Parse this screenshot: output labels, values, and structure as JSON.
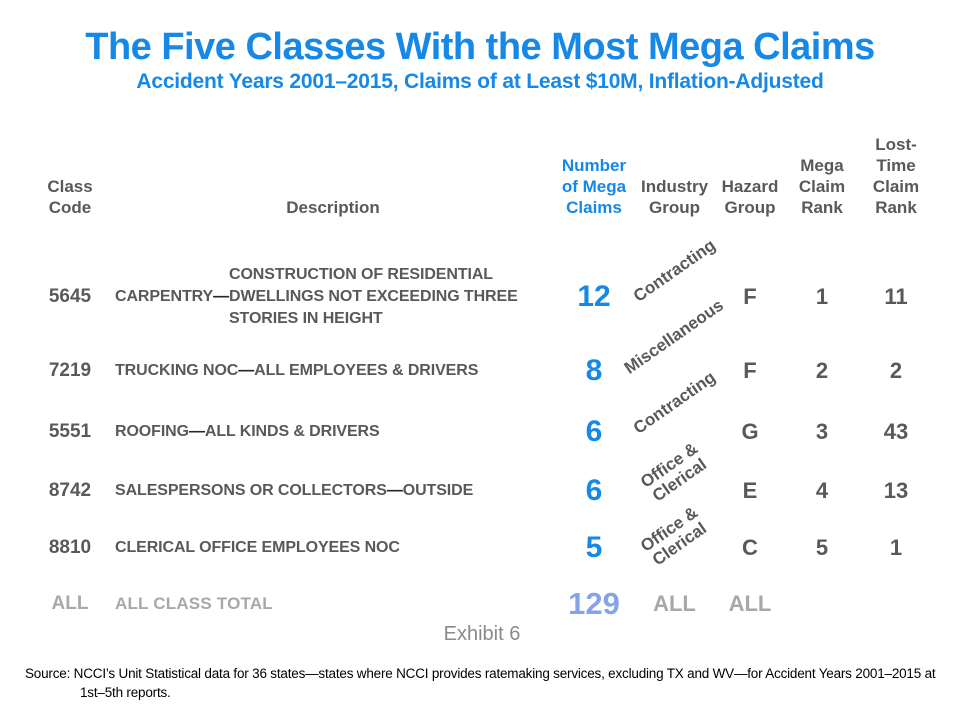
{
  "title": "The Five Classes With the Most Mega Claims",
  "subtitle": "Accident Years 2001–2015, Claims of at Least $10M, Inflation-Adjusted",
  "colors": {
    "accent_blue": "#1588E8",
    "total_muted_blue": "#86A2E8",
    "text_dark_gray": "#595959",
    "total_light_gray": "#A8A8A8",
    "exhibit_gray": "#8A8A8A",
    "background": "#FFFFFF"
  },
  "table": {
    "headers": {
      "class_code": "Class\nCode",
      "description": "Description",
      "mega_claims": "Number\nof Mega\nClaims",
      "industry_group": "Industry\nGroup",
      "hazard_group": "Hazard\nGroup",
      "mega_claim_rank": "Mega\nClaim\nRank",
      "lost_time_claim_rank": "Lost-\nTime\nClaim\nRank"
    },
    "rows": [
      {
        "code": "5645",
        "description": "CARPENTRY—CONSTRUCTION OF RESIDENTIAL DWELLINGS NOT EXCEEDING THREE STORIES IN HEIGHT",
        "claims": "12",
        "industry": "Contracting",
        "hazard": "F",
        "mega_rank": "1",
        "lost_time_rank": "11"
      },
      {
        "code": "7219",
        "description": "TRUCKING NOC—ALL EMPLOYEES & DRIVERS",
        "claims": "8",
        "industry": "Miscellaneous",
        "hazard": "F",
        "mega_rank": "2",
        "lost_time_rank": "2"
      },
      {
        "code": "5551",
        "description": "ROOFING—ALL KINDS & DRIVERS",
        "claims": "6",
        "industry": "Contracting",
        "hazard": "G",
        "mega_rank": "3",
        "lost_time_rank": "43"
      },
      {
        "code": "8742",
        "description": "SALESPERSONS OR COLLECTORS—OUTSIDE",
        "claims": "6",
        "industry": "Office &\nClerical",
        "hazard": "E",
        "mega_rank": "4",
        "lost_time_rank": "13"
      },
      {
        "code": "8810",
        "description": "CLERICAL OFFICE EMPLOYEES NOC",
        "claims": "5",
        "industry": "Office &\nClerical",
        "hazard": "C",
        "mega_rank": "5",
        "lost_time_rank": "1"
      }
    ],
    "total": {
      "code": "ALL",
      "description": "ALL CLASS TOTAL",
      "claims": "129",
      "industry": "ALL",
      "hazard": "ALL"
    }
  },
  "exhibit_label": "Exhibit 6",
  "source_note": "Source: NCCI’s Unit Statistical data for 36 states—states where NCCI provides ratemaking services, excluding TX and WV—for Accident Years 2001–2015 at 1st–5th reports."
}
